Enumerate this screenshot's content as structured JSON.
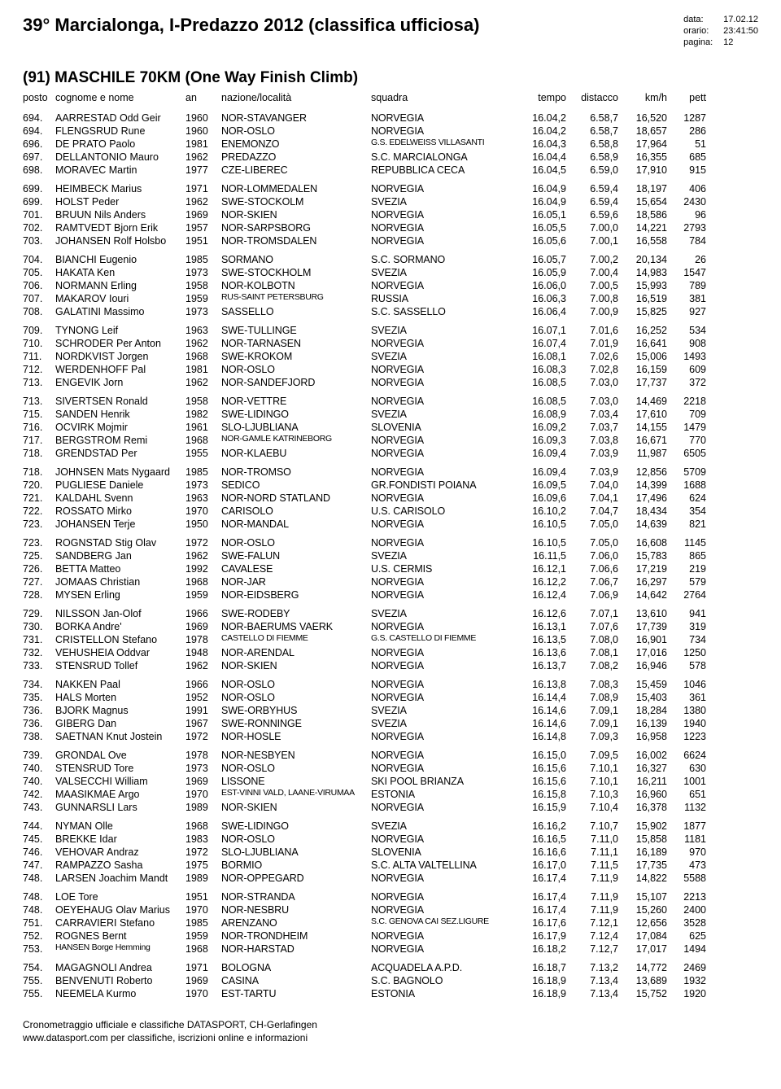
{
  "header": {
    "title": "39° Marcialonga, I-Predazzo 2012 (classifica ufficiosa)",
    "meta": {
      "data_label": "data:",
      "data_value": "17.02.12",
      "orario_label": "orario:",
      "orario_value": "23:41:50",
      "pagina_label": "pagina:",
      "pagina_value": "12"
    }
  },
  "subtitle": "(91) MASCHILE 70KM (One Way Finish Climb)",
  "columns": {
    "posto": "posto",
    "cognome": "cognome e nome",
    "an": "an",
    "naz": "nazione/località",
    "squadra": "squadra",
    "tempo": "tempo",
    "distacco": "distacco",
    "kmh": "km/h",
    "pett": "pett"
  },
  "groups": [
    [
      {
        "posto": "694.",
        "nome": "AARRESTAD Odd Geir",
        "an": "1960",
        "naz": "NOR-STAVANGER",
        "squadra": "NORVEGIA",
        "tempo": "16.04,2",
        "dist": "6.58,7",
        "kmh": "16,520",
        "pett": "1287"
      },
      {
        "posto": "694.",
        "nome": "FLENGSRUD Rune",
        "an": "1960",
        "naz": "NOR-OSLO",
        "squadra": "NORVEGIA",
        "tempo": "16.04,2",
        "dist": "6.58,7",
        "kmh": "18,657",
        "pett": "286"
      },
      {
        "posto": "696.",
        "nome": "DE PRATO Paolo",
        "an": "1981",
        "naz": "ENEMONZO",
        "squadra": "G.S. EDELWEISS VILLASANTI",
        "sq_small": true,
        "tempo": "16.04,3",
        "dist": "6.58,8",
        "kmh": "17,964",
        "pett": "51"
      },
      {
        "posto": "697.",
        "nome": "DELLANTONIO Mauro",
        "an": "1962",
        "naz": "PREDAZZO",
        "squadra": "S.C. MARCIALONGA",
        "tempo": "16.04,4",
        "dist": "6.58,9",
        "kmh": "16,355",
        "pett": "685"
      },
      {
        "posto": "698.",
        "nome": "MORAVEC Martin",
        "an": "1977",
        "naz": "CZE-LIBEREC",
        "squadra": "REPUBBLICA CECA",
        "tempo": "16.04,5",
        "dist": "6.59,0",
        "kmh": "17,910",
        "pett": "915"
      }
    ],
    [
      {
        "posto": "699.",
        "nome": "HEIMBECK Marius",
        "an": "1971",
        "naz": "NOR-LOMMEDALEN",
        "squadra": "NORVEGIA",
        "tempo": "16.04,9",
        "dist": "6.59,4",
        "kmh": "18,197",
        "pett": "406"
      },
      {
        "posto": "699.",
        "nome": "HOLST Peder",
        "an": "1962",
        "naz": "SWE-STOCKOLM",
        "squadra": "SVEZIA",
        "tempo": "16.04,9",
        "dist": "6.59,4",
        "kmh": "15,654",
        "pett": "2430"
      },
      {
        "posto": "701.",
        "nome": "BRUUN Nils Anders",
        "an": "1969",
        "naz": "NOR-SKIEN",
        "squadra": "NORVEGIA",
        "tempo": "16.05,1",
        "dist": "6.59,6",
        "kmh": "18,586",
        "pett": "96"
      },
      {
        "posto": "702.",
        "nome": "RAMTVEDT Bjorn Erik",
        "an": "1957",
        "naz": "NOR-SARPSBORG",
        "squadra": "NORVEGIA",
        "tempo": "16.05,5",
        "dist": "7.00,0",
        "kmh": "14,221",
        "pett": "2793"
      },
      {
        "posto": "703.",
        "nome": "JOHANSEN Rolf Holsbo",
        "an": "1951",
        "naz": "NOR-TROMSDALEN",
        "squadra": "NORVEGIA",
        "tempo": "16.05,6",
        "dist": "7.00,1",
        "kmh": "16,558",
        "pett": "784"
      }
    ],
    [
      {
        "posto": "704.",
        "nome": "BIANCHI Eugenio",
        "an": "1985",
        "naz": "SORMANO",
        "squadra": "S.C. SORMANO",
        "tempo": "16.05,7",
        "dist": "7.00,2",
        "kmh": "20,134",
        "pett": "26"
      },
      {
        "posto": "705.",
        "nome": "HAKATA Ken",
        "an": "1973",
        "naz": "SWE-STOCKHOLM",
        "squadra": "SVEZIA",
        "tempo": "16.05,9",
        "dist": "7.00,4",
        "kmh": "14,983",
        "pett": "1547"
      },
      {
        "posto": "706.",
        "nome": "NORMANN Erling",
        "an": "1958",
        "naz": "NOR-KOLBOTN",
        "squadra": "NORVEGIA",
        "tempo": "16.06,0",
        "dist": "7.00,5",
        "kmh": "15,993",
        "pett": "789"
      },
      {
        "posto": "707.",
        "nome": "MAKAROV Iouri",
        "an": "1959",
        "naz": "RUS-SAINT PETERSBURG",
        "naz_small": true,
        "squadra": "RUSSIA",
        "tempo": "16.06,3",
        "dist": "7.00,8",
        "kmh": "16,519",
        "pett": "381"
      },
      {
        "posto": "708.",
        "nome": "GALATINI Massimo",
        "an": "1973",
        "naz": "SASSELLO",
        "squadra": "S.C. SASSELLO",
        "tempo": "16.06,4",
        "dist": "7.00,9",
        "kmh": "15,825",
        "pett": "927"
      }
    ],
    [
      {
        "posto": "709.",
        "nome": "TYNONG Leif",
        "an": "1963",
        "naz": "SWE-TULLINGE",
        "squadra": "SVEZIA",
        "tempo": "16.07,1",
        "dist": "7.01,6",
        "kmh": "16,252",
        "pett": "534"
      },
      {
        "posto": "710.",
        "nome": "SCHRODER Per Anton",
        "an": "1962",
        "naz": "NOR-TARNASEN",
        "squadra": "NORVEGIA",
        "tempo": "16.07,4",
        "dist": "7.01,9",
        "kmh": "16,641",
        "pett": "908"
      },
      {
        "posto": "711.",
        "nome": "NORDKVIST Jorgen",
        "an": "1968",
        "naz": "SWE-KROKOM",
        "squadra": "SVEZIA",
        "tempo": "16.08,1",
        "dist": "7.02,6",
        "kmh": "15,006",
        "pett": "1493"
      },
      {
        "posto": "712.",
        "nome": "WERDENHOFF Pal",
        "an": "1981",
        "naz": "NOR-OSLO",
        "squadra": "NORVEGIA",
        "tempo": "16.08,3",
        "dist": "7.02,8",
        "kmh": "16,159",
        "pett": "609"
      },
      {
        "posto": "713.",
        "nome": "ENGEVIK Jorn",
        "an": "1962",
        "naz": "NOR-SANDEFJORD",
        "squadra": "NORVEGIA",
        "tempo": "16.08,5",
        "dist": "7.03,0",
        "kmh": "17,737",
        "pett": "372"
      }
    ],
    [
      {
        "posto": "713.",
        "nome": "SIVERTSEN Ronald",
        "an": "1958",
        "naz": "NOR-VETTRE",
        "squadra": "NORVEGIA",
        "tempo": "16.08,5",
        "dist": "7.03,0",
        "kmh": "14,469",
        "pett": "2218"
      },
      {
        "posto": "715.",
        "nome": "SANDEN Henrik",
        "an": "1982",
        "naz": "SWE-LIDINGO",
        "squadra": "SVEZIA",
        "tempo": "16.08,9",
        "dist": "7.03,4",
        "kmh": "17,610",
        "pett": "709"
      },
      {
        "posto": "716.",
        "nome": "OCVIRK Mojmir",
        "an": "1961",
        "naz": "SLO-LJUBLIANA",
        "squadra": "SLOVENIA",
        "tempo": "16.09,2",
        "dist": "7.03,7",
        "kmh": "14,155",
        "pett": "1479"
      },
      {
        "posto": "717.",
        "nome": "BERGSTROM Remi",
        "an": "1968",
        "naz": "NOR-GAMLE KATRINEBORG",
        "naz_small": true,
        "squadra": "NORVEGIA",
        "tempo": "16.09,3",
        "dist": "7.03,8",
        "kmh": "16,671",
        "pett": "770"
      },
      {
        "posto": "718.",
        "nome": "GRENDSTAD Per",
        "an": "1955",
        "naz": "NOR-KLAEBU",
        "squadra": "NORVEGIA",
        "tempo": "16.09,4",
        "dist": "7.03,9",
        "kmh": "11,987",
        "pett": "6505"
      }
    ],
    [
      {
        "posto": "718.",
        "nome": "JOHNSEN Mats Nygaard",
        "an": "1985",
        "naz": "NOR-TROMSO",
        "squadra": "NORVEGIA",
        "tempo": "16.09,4",
        "dist": "7.03,9",
        "kmh": "12,856",
        "pett": "5709"
      },
      {
        "posto": "720.",
        "nome": "PUGLIESE Daniele",
        "an": "1973",
        "naz": "SEDICO",
        "squadra": "GR.FONDISTI POIANA",
        "tempo": "16.09,5",
        "dist": "7.04,0",
        "kmh": "14,399",
        "pett": "1688"
      },
      {
        "posto": "721.",
        "nome": "KALDAHL Svenn",
        "an": "1963",
        "naz": "NOR-NORD STATLAND",
        "squadra": "NORVEGIA",
        "tempo": "16.09,6",
        "dist": "7.04,1",
        "kmh": "17,496",
        "pett": "624"
      },
      {
        "posto": "722.",
        "nome": "ROSSATO Mirko",
        "an": "1970",
        "naz": "CARISOLO",
        "squadra": "U.S. CARISOLO",
        "tempo": "16.10,2",
        "dist": "7.04,7",
        "kmh": "18,434",
        "pett": "354"
      },
      {
        "posto": "723.",
        "nome": "JOHANSEN Terje",
        "an": "1950",
        "naz": "NOR-MANDAL",
        "squadra": "NORVEGIA",
        "tempo": "16.10,5",
        "dist": "7.05,0",
        "kmh": "14,639",
        "pett": "821"
      }
    ],
    [
      {
        "posto": "723.",
        "nome": "ROGNSTAD Stig Olav",
        "an": "1972",
        "naz": "NOR-OSLO",
        "squadra": "NORVEGIA",
        "tempo": "16.10,5",
        "dist": "7.05,0",
        "kmh": "16,608",
        "pett": "1145"
      },
      {
        "posto": "725.",
        "nome": "SANDBERG Jan",
        "an": "1962",
        "naz": "SWE-FALUN",
        "squadra": "SVEZIA",
        "tempo": "16.11,5",
        "dist": "7.06,0",
        "kmh": "15,783",
        "pett": "865"
      },
      {
        "posto": "726.",
        "nome": "BETTA Matteo",
        "an": "1992",
        "naz": "CAVALESE",
        "squadra": "U.S. CERMIS",
        "tempo": "16.12,1",
        "dist": "7.06,6",
        "kmh": "17,219",
        "pett": "219"
      },
      {
        "posto": "727.",
        "nome": "JOMAAS Christian",
        "an": "1968",
        "naz": "NOR-JAR",
        "squadra": "NORVEGIA",
        "tempo": "16.12,2",
        "dist": "7.06,7",
        "kmh": "16,297",
        "pett": "579"
      },
      {
        "posto": "728.",
        "nome": "MYSEN Erling",
        "an": "1959",
        "naz": "NOR-EIDSBERG",
        "squadra": "NORVEGIA",
        "tempo": "16.12,4",
        "dist": "7.06,9",
        "kmh": "14,642",
        "pett": "2764"
      }
    ],
    [
      {
        "posto": "729.",
        "nome": "NILSSON Jan-Olof",
        "an": "1966",
        "naz": "SWE-RODEBY",
        "squadra": "SVEZIA",
        "tempo": "16.12,6",
        "dist": "7.07,1",
        "kmh": "13,610",
        "pett": "941"
      },
      {
        "posto": "730.",
        "nome": "BORKA Andre'",
        "an": "1969",
        "naz": "NOR-BAERUMS VAERK",
        "squadra": "NORVEGIA",
        "tempo": "16.13,1",
        "dist": "7.07,6",
        "kmh": "17,739",
        "pett": "319"
      },
      {
        "posto": "731.",
        "nome": "CRISTELLON Stefano",
        "an": "1978",
        "naz": "CASTELLO DI FIEMME",
        "naz_small": true,
        "squadra": "G.S. CASTELLO DI FIEMME",
        "sq_small": true,
        "tempo": "16.13,5",
        "dist": "7.08,0",
        "kmh": "16,901",
        "pett": "734"
      },
      {
        "posto": "732.",
        "nome": "VEHUSHEIA Oddvar",
        "an": "1948",
        "naz": "NOR-ARENDAL",
        "squadra": "NORVEGIA",
        "tempo": "16.13,6",
        "dist": "7.08,1",
        "kmh": "17,016",
        "pett": "1250"
      },
      {
        "posto": "733.",
        "nome": "STENSRUD Tollef",
        "an": "1962",
        "naz": "NOR-SKIEN",
        "squadra": "NORVEGIA",
        "tempo": "16.13,7",
        "dist": "7.08,2",
        "kmh": "16,946",
        "pett": "578"
      }
    ],
    [
      {
        "posto": "734.",
        "nome": "NAKKEN Paal",
        "an": "1966",
        "naz": "NOR-OSLO",
        "squadra": "NORVEGIA",
        "tempo": "16.13,8",
        "dist": "7.08,3",
        "kmh": "15,459",
        "pett": "1046"
      },
      {
        "posto": "735.",
        "nome": "HALS Morten",
        "an": "1952",
        "naz": "NOR-OSLO",
        "squadra": "NORVEGIA",
        "tempo": "16.14,4",
        "dist": "7.08,9",
        "kmh": "15,403",
        "pett": "361"
      },
      {
        "posto": "736.",
        "nome": "BJORK Magnus",
        "an": "1991",
        "naz": "SWE-ORBYHUS",
        "squadra": "SVEZIA",
        "tempo": "16.14,6",
        "dist": "7.09,1",
        "kmh": "18,284",
        "pett": "1380"
      },
      {
        "posto": "736.",
        "nome": "GIBERG Dan",
        "an": "1967",
        "naz": "SWE-RONNINGE",
        "squadra": "SVEZIA",
        "tempo": "16.14,6",
        "dist": "7.09,1",
        "kmh": "16,139",
        "pett": "1940"
      },
      {
        "posto": "738.",
        "nome": "SAETNAN Knut Jostein",
        "an": "1972",
        "naz": "NOR-HOSLE",
        "squadra": "NORVEGIA",
        "tempo": "16.14,8",
        "dist": "7.09,3",
        "kmh": "16,958",
        "pett": "1223"
      }
    ],
    [
      {
        "posto": "739.",
        "nome": "GRONDAL Ove",
        "an": "1978",
        "naz": "NOR-NESBYEN",
        "squadra": "NORVEGIA",
        "tempo": "16.15,0",
        "dist": "7.09,5",
        "kmh": "16,002",
        "pett": "6624"
      },
      {
        "posto": "740.",
        "nome": "STENSRUD Tore",
        "an": "1973",
        "naz": "NOR-OSLO",
        "squadra": "NORVEGIA",
        "tempo": "16.15,6",
        "dist": "7.10,1",
        "kmh": "16,327",
        "pett": "630"
      },
      {
        "posto": "740.",
        "nome": "VALSECCHI William",
        "an": "1969",
        "naz": "LISSONE",
        "squadra": "SKI POOL BRIANZA",
        "tempo": "16.15,6",
        "dist": "7.10,1",
        "kmh": "16,211",
        "pett": "1001"
      },
      {
        "posto": "742.",
        "nome": "MAASIKMAE Argo",
        "an": "1970",
        "naz": "EST-VINNI VALD, LAANE-VIRUMAA",
        "naz_small": true,
        "squadra": "ESTONIA",
        "tempo": "16.15,8",
        "dist": "7.10,3",
        "kmh": "16,960",
        "pett": "651"
      },
      {
        "posto": "743.",
        "nome": "GUNNARSLI Lars",
        "an": "1989",
        "naz": "NOR-SKIEN",
        "squadra": "NORVEGIA",
        "tempo": "16.15,9",
        "dist": "7.10,4",
        "kmh": "16,378",
        "pett": "1132"
      }
    ],
    [
      {
        "posto": "744.",
        "nome": "NYMAN Olle",
        "an": "1968",
        "naz": "SWE-LIDINGO",
        "squadra": "SVEZIA",
        "tempo": "16.16,2",
        "dist": "7.10,7",
        "kmh": "15,902",
        "pett": "1877"
      },
      {
        "posto": "745.",
        "nome": "BREKKE Idar",
        "an": "1983",
        "naz": "NOR-OSLO",
        "squadra": "NORVEGIA",
        "tempo": "16.16,5",
        "dist": "7.11,0",
        "kmh": "15,858",
        "pett": "1181"
      },
      {
        "posto": "746.",
        "nome": "VEHOVAR Andraz",
        "an": "1972",
        "naz": "SLO-LJUBLIANA",
        "squadra": "SLOVENIA",
        "tempo": "16.16,6",
        "dist": "7.11,1",
        "kmh": "16,189",
        "pett": "970"
      },
      {
        "posto": "747.",
        "nome": "RAMPAZZO Sasha",
        "an": "1975",
        "naz": "BORMIO",
        "squadra": "S.C. ALTA VALTELLINA",
        "tempo": "16.17,0",
        "dist": "7.11,5",
        "kmh": "17,735",
        "pett": "473"
      },
      {
        "posto": "748.",
        "nome": "LARSEN Joachim Mandt",
        "an": "1989",
        "naz": "NOR-OPPEGARD",
        "squadra": "NORVEGIA",
        "tempo": "16.17,4",
        "dist": "7.11,9",
        "kmh": "14,822",
        "pett": "5588"
      }
    ],
    [
      {
        "posto": "748.",
        "nome": "LOE Tore",
        "an": "1951",
        "naz": "NOR-STRANDA",
        "squadra": "NORVEGIA",
        "tempo": "16.17,4",
        "dist": "7.11,9",
        "kmh": "15,107",
        "pett": "2213"
      },
      {
        "posto": "748.",
        "nome": "OEYEHAUG Olav Marius",
        "an": "1970",
        "naz": "NOR-NESBRU",
        "squadra": "NORVEGIA",
        "tempo": "16.17,4",
        "dist": "7.11,9",
        "kmh": "15,260",
        "pett": "2400"
      },
      {
        "posto": "751.",
        "nome": "CARRAVIERI Stefano",
        "an": "1985",
        "naz": "ARENZANO",
        "squadra": "S.C. GENOVA CAI SEZ.LIGURE",
        "sq_small": true,
        "tempo": "16.17,6",
        "dist": "7.12,1",
        "kmh": "12,656",
        "pett": "3528"
      },
      {
        "posto": "752.",
        "nome": "ROGNES Bernt",
        "an": "1959",
        "naz": "NOR-TRONDHEIM",
        "squadra": "NORVEGIA",
        "tempo": "16.17,9",
        "dist": "7.12,4",
        "kmh": "17,084",
        "pett": "625"
      },
      {
        "posto": "753.",
        "nome": "HANSEN Borge Hemming",
        "nome_small": true,
        "an": "1968",
        "naz": "NOR-HARSTAD",
        "squadra": "NORVEGIA",
        "tempo": "16.18,2",
        "dist": "7.12,7",
        "kmh": "17,017",
        "pett": "1494"
      }
    ],
    [
      {
        "posto": "754.",
        "nome": "MAGAGNOLI Andrea",
        "an": "1971",
        "naz": "BOLOGNA",
        "squadra": "ACQUADELA A.P.D.",
        "tempo": "16.18,7",
        "dist": "7.13,2",
        "kmh": "14,772",
        "pett": "2469"
      },
      {
        "posto": "755.",
        "nome": "BENVENUTI Roberto",
        "an": "1969",
        "naz": "CASINA",
        "squadra": "S.C. BAGNOLO",
        "tempo": "16.18,9",
        "dist": "7.13,4",
        "kmh": "13,689",
        "pett": "1932"
      },
      {
        "posto": "755.",
        "nome": "NEEMELA Kurmo",
        "an": "1970",
        "naz": "EST-TARTU",
        "squadra": "ESTONIA",
        "tempo": "16.18,9",
        "dist": "7.13,4",
        "kmh": "15,752",
        "pett": "1920"
      }
    ]
  ],
  "footer": {
    "line1": "Cronometraggio ufficiale e classifiche DATASPORT, CH-Gerlafingen",
    "line2": "www.datasport.com per classifiche, iscrizioni online e informazioni"
  }
}
